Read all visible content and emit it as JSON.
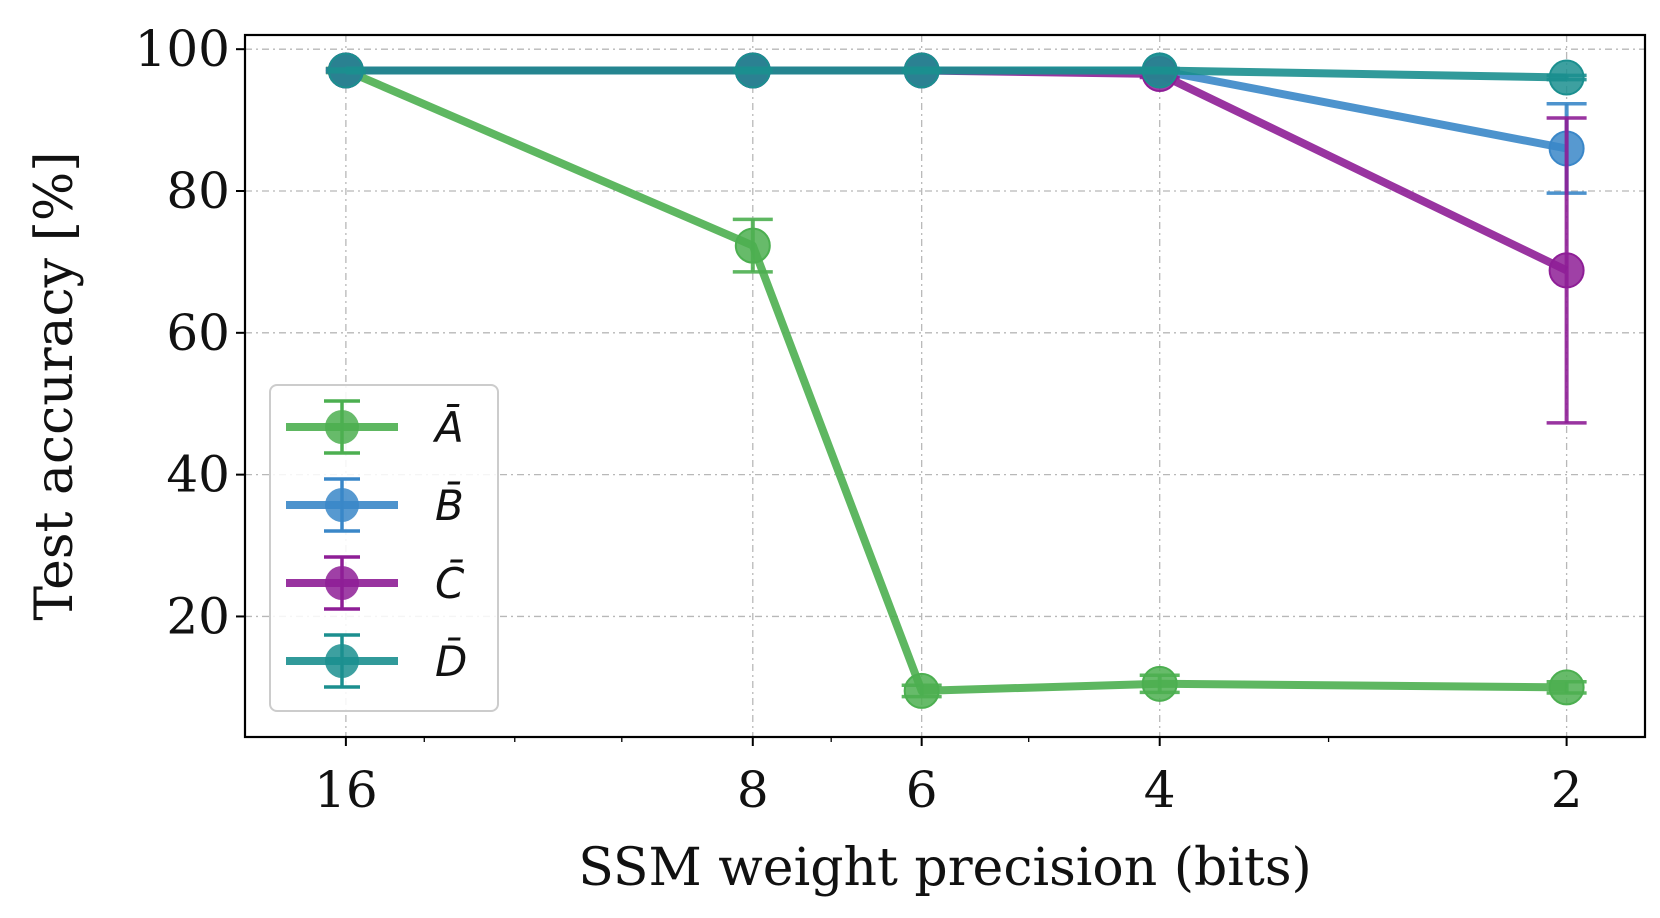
{
  "chart_data": {
    "type": "line",
    "title": "",
    "xlabel": "SSM weight precision (bits)",
    "ylabel": "Test accuracy [%]",
    "x": [
      16,
      8,
      6,
      4,
      2
    ],
    "xticks": [
      "16",
      "8",
      "6",
      "4",
      "2"
    ],
    "x_scale": "log, reversed",
    "ylim": [
      3,
      102
    ],
    "yticks": [
      20,
      40,
      60,
      80,
      100
    ],
    "grid": true,
    "legend_position": "lower-left",
    "series": [
      {
        "name": "Ā",
        "color": "#4caf50",
        "values": [
          97.0,
          72.3,
          9.5,
          10.5,
          10.0
        ],
        "errors": [
          0.3,
          3.7,
          0.8,
          1.2,
          0.8
        ]
      },
      {
        "name": "B̄",
        "color": "#3a87c8",
        "values": [
          97.0,
          97.0,
          97.0,
          97.0,
          86.0
        ],
        "errors": [
          0.2,
          0.2,
          0.2,
          0.3,
          6.3
        ]
      },
      {
        "name": "C̄",
        "color": "#8e1e96",
        "values": [
          97.0,
          97.0,
          97.0,
          96.5,
          68.8
        ],
        "errors": [
          0.2,
          0.2,
          0.2,
          0.5,
          21.5
        ]
      },
      {
        "name": "D̄",
        "color": "#1b8f8f",
        "values": [
          97.0,
          97.0,
          97.0,
          97.0,
          96.0
        ],
        "errors": [
          0.2,
          0.2,
          0.2,
          0.2,
          0.3
        ]
      }
    ]
  }
}
